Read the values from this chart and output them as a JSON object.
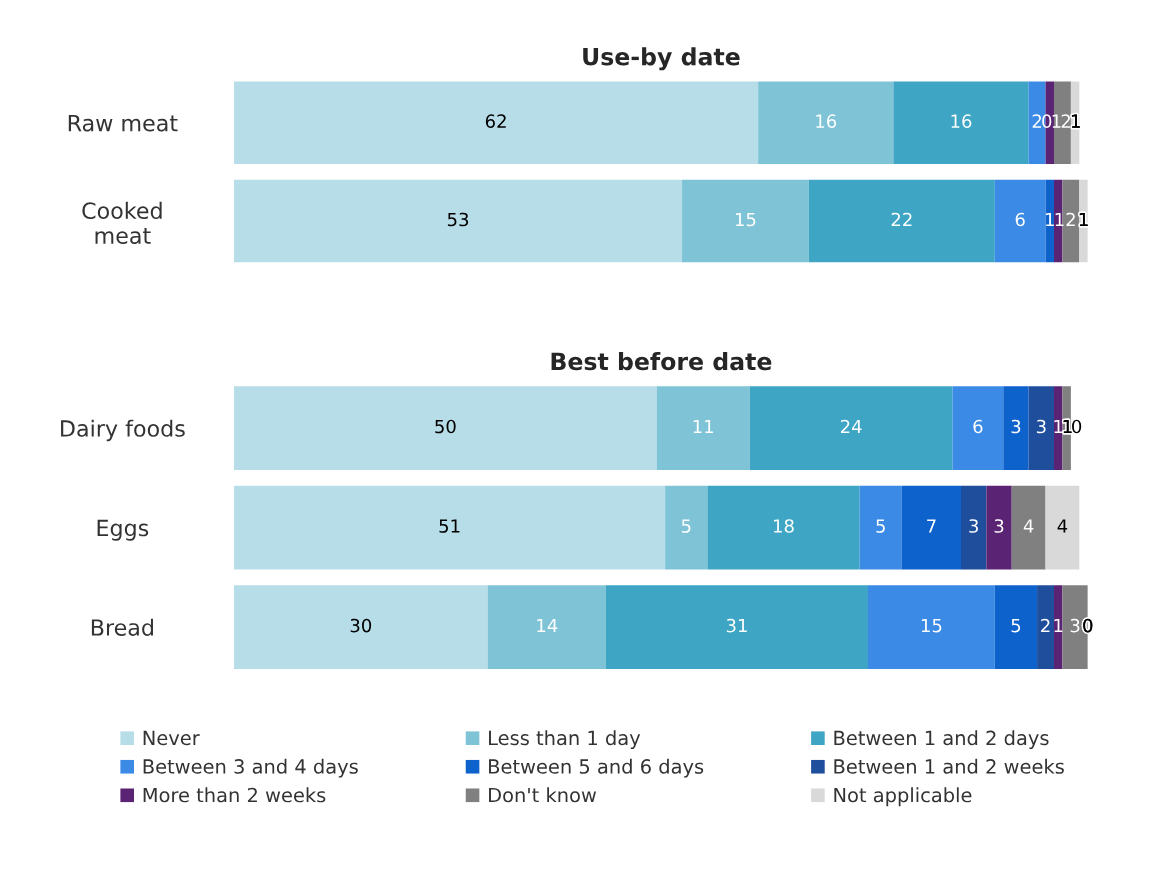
{
  "chart_data": [
    {
      "type": "bar",
      "title": "Use-by date",
      "orientation": "horizontal",
      "stacked": true,
      "categories": [
        "Raw meat",
        "Cooked\nmeat"
      ],
      "xlim": [
        0,
        101
      ],
      "tick_labels": "y",
      "grid": false,
      "series": [
        {
          "color": "#b7dde8",
          "values": [
            62,
            53
          ],
          "value_labels": [
            "62",
            "53"
          ]
        },
        {
          "color": "#7fc4d6",
          "values": [
            16,
            15
          ],
          "value_labels": [
            "16",
            "15"
          ]
        },
        {
          "color": "#3ea6c4",
          "values": [
            16,
            22
          ],
          "value_labels": [
            "16",
            "22"
          ]
        },
        {
          "color": "#3a8ae6",
          "values": [
            2,
            6
          ],
          "value_labels": [
            "2",
            "6"
          ]
        },
        {
          "color": "#0e62cc",
          "values": [
            0,
            1
          ],
          "value_labels": [
            "0",
            "1"
          ]
        },
        {
          "color": "#1f4e9c",
          "values": [
            0,
            0
          ],
          "value_labels": [
            null,
            null
          ]
        },
        {
          "color": "#5b2373",
          "values": [
            1,
            1
          ],
          "value_labels": [
            "1",
            "1"
          ]
        },
        {
          "color": "#808080",
          "values": [
            2,
            2
          ],
          "value_labels": [
            "2",
            "2"
          ]
        },
        {
          "color": "#d9d9d9",
          "values": [
            1,
            1
          ],
          "value_labels": [
            "1",
            "1"
          ]
        }
      ]
    },
    {
      "type": "bar",
      "title": "Best before date",
      "orientation": "horizontal",
      "stacked": true,
      "categories": [
        "Dairy foods",
        "Eggs",
        "Bread"
      ],
      "xlim": [
        0,
        101
      ],
      "tick_labels": "y",
      "grid": false,
      "legend": "bottom",
      "series": [
        {
          "name": "Never",
          "color": "#b7dde8",
          "values": [
            50,
            51,
            30
          ],
          "value_labels": [
            "50",
            "51",
            "30"
          ]
        },
        {
          "name": "Less than 1 day",
          "color": "#7fc4d6",
          "values": [
            11,
            5,
            14
          ],
          "value_labels": [
            "11",
            "5",
            "14"
          ]
        },
        {
          "name": "Between 1 and 2 days",
          "color": "#3ea6c4",
          "values": [
            24,
            18,
            31
          ],
          "value_labels": [
            "24",
            "18",
            "31"
          ]
        },
        {
          "name": "Between 3 and 4 days",
          "color": "#3a8ae6",
          "values": [
            6,
            5,
            15
          ],
          "value_labels": [
            "6",
            "5",
            "15"
          ]
        },
        {
          "name": "Between 5 and 6 days",
          "color": "#0e62cc",
          "values": [
            3,
            7,
            5
          ],
          "value_labels": [
            "3",
            "7",
            "5"
          ]
        },
        {
          "name": "Between 1 and 2 weeks",
          "color": "#1f4e9c",
          "values": [
            3,
            3,
            2
          ],
          "value_labels": [
            "3",
            "3",
            "2"
          ]
        },
        {
          "name": "More than 2 weeks",
          "color": "#5b2373",
          "values": [
            1,
            3,
            1
          ],
          "value_labels": [
            "1",
            "3",
            "1"
          ]
        },
        {
          "name": "Don't know",
          "color": "#808080",
          "values": [
            1,
            4,
            3
          ],
          "value_labels": [
            "1",
            "4",
            "3"
          ]
        },
        {
          "name": "Not applicable",
          "color": "#d9d9d9",
          "values": [
            0,
            4,
            0
          ],
          "value_labels": [
            "0",
            "4",
            "0"
          ]
        }
      ]
    }
  ]
}
